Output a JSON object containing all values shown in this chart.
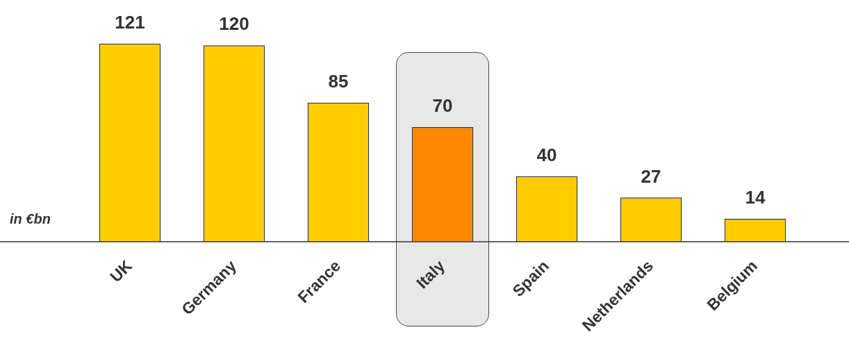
{
  "chart_data": {
    "type": "bar",
    "ylabel": "in €bn",
    "categories": [
      "UK",
      "Germany",
      "France",
      "Italy",
      "Spain",
      "Netherlands",
      "Belgium"
    ],
    "values": [
      121,
      120,
      85,
      70,
      40,
      27,
      14
    ],
    "colors": [
      "#ffcc00",
      "#ffcc00",
      "#ffcc00",
      "#ff8800",
      "#ffcc00",
      "#ffcc00",
      "#ffcc00"
    ],
    "data_labels": true,
    "grid": false,
    "legend": false
  }
}
